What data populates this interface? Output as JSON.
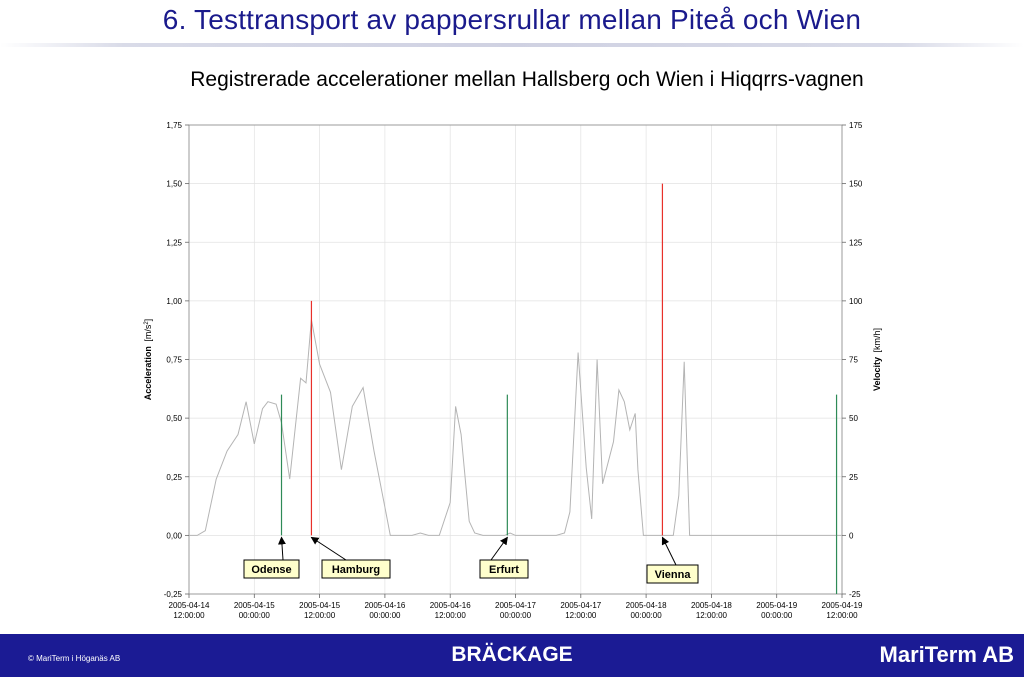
{
  "slide": {
    "title": "6. Testtransport av pappersrullar mellan Piteå och Wien",
    "subtitle": "Registrerade accelerationer mellan Hallsberg och Wien i Hiqqrrs-vagnen"
  },
  "footer": {
    "copyright": "© MariTerm i Höganäs AB",
    "center": "BRÄCKAGE",
    "brand": "MariTerm AB",
    "color": "#1b1b94"
  },
  "chart_data": {
    "type": "line",
    "ylabel_bold": "Acceleration",
    "ylabel_unit": "[m/s",
    "ylabel_sup": "2",
    "ylabel_end": "]",
    "y2label_bold": "Velocity",
    "y2label_unit": "[km/h]",
    "ylim": [
      -0.25,
      1.75
    ],
    "y2lim": [
      -25,
      175
    ],
    "yticks": [
      "1,75",
      "1,50",
      "1,25",
      "1,00",
      "0,75",
      "0,50",
      "0,25",
      "0,00",
      "-0,25"
    ],
    "y2ticks": [
      "175",
      "150",
      "125",
      "100",
      "75",
      "50",
      "25",
      "0",
      "-25"
    ],
    "xlim": [
      "2005-04-14 12:00",
      "2005-04-19 12:00"
    ],
    "xticks": [
      [
        "2005-04-14",
        "12:00:00"
      ],
      [
        "2005-04-15",
        "00:00:00"
      ],
      [
        "2005-04-15",
        "12:00:00"
      ],
      [
        "2005-04-16",
        "00:00:00"
      ],
      [
        "2005-04-16",
        "12:00:00"
      ],
      [
        "2005-04-17",
        "00:00:00"
      ],
      [
        "2005-04-17",
        "12:00:00"
      ],
      [
        "2005-04-18",
        "00:00:00"
      ],
      [
        "2005-04-18",
        "12:00:00"
      ],
      [
        "2005-04-19",
        "00:00:00"
      ],
      [
        "2005-04-19",
        "12:00:00"
      ]
    ],
    "grid": true,
    "colors": {
      "velocity": "#b4b4b4",
      "red_accel": "#e8302a",
      "green_accel": "#2e8b57",
      "label_bg": "#ffffcc"
    },
    "series": [
      {
        "role": "velocity",
        "x": [
          "2005-04-14 12:00",
          "2005-04-14 13:30",
          "2005-04-14 15:00",
          "2005-04-14 17:00",
          "2005-04-14 19:00",
          "2005-04-14 21:00",
          "2005-04-14 22:30",
          "2005-04-15 00:00",
          "2005-04-15 01:30",
          "2005-04-15 02:30",
          "2005-04-15 04:00",
          "2005-04-15 05:00",
          "2005-04-15 06:30",
          "2005-04-15 08:30",
          "2005-04-15 09:30",
          "2005-04-15 10:30",
          "2005-04-15 12:00",
          "2005-04-15 14:00",
          "2005-04-15 16:00",
          "2005-04-15 18:00",
          "2005-04-15 20:00",
          "2005-04-15 22:00",
          "2005-04-16 00:00",
          "2005-04-16 01:00",
          "2005-04-16 02:30",
          "2005-04-16 04:00",
          "2005-04-16 05:00",
          "2005-04-16 06:30",
          "2005-04-16 08:00",
          "2005-04-16 10:00",
          "2005-04-16 12:00",
          "2005-04-16 13:00",
          "2005-04-16 14:00",
          "2005-04-16 15:30",
          "2005-04-16 16:30",
          "2005-04-16 18:00",
          "2005-04-16 19:00",
          "2005-04-16 20:00",
          "2005-04-16 21:00",
          "2005-04-16 22:00",
          "2005-04-16 23:00",
          "2005-04-17 00:00",
          "2005-04-17 01:00",
          "2005-04-17 02:00",
          "2005-04-17 03:00",
          "2005-04-17 04:00",
          "2005-04-17 05:00",
          "2005-04-17 06:30",
          "2005-04-17 07:30",
          "2005-04-17 09:00",
          "2005-04-17 10:00",
          "2005-04-17 11:30",
          "2005-04-17 13:00",
          "2005-04-17 14:00",
          "2005-04-17 15:00",
          "2005-04-17 16:00",
          "2005-04-17 18:00",
          "2005-04-17 19:00",
          "2005-04-17 20:00",
          "2005-04-17 21:00",
          "2005-04-17 22:00",
          "2005-04-17 22:30",
          "2005-04-17 23:30",
          "2005-04-18 00:00",
          "2005-04-18 01:30",
          "2005-04-18 03:00",
          "2005-04-18 04:00",
          "2005-04-18 05:00",
          "2005-04-18 06:00",
          "2005-04-18 07:00",
          "2005-04-18 08:00",
          "2005-04-18 10:00",
          "2005-04-18 11:00",
          "2005-04-18 12:00",
          "2005-04-19 12:00"
        ],
        "values": [
          0,
          0,
          2,
          24,
          36,
          43,
          57,
          39,
          54,
          57,
          56,
          48,
          24,
          67,
          65,
          92,
          73,
          61,
          28,
          55,
          63,
          36,
          12,
          0,
          0,
          0,
          0,
          1,
          0,
          0,
          14,
          55,
          43,
          6,
          1,
          0,
          0,
          0,
          0,
          0,
          1,
          0,
          0,
          0,
          0,
          0,
          0,
          0,
          0,
          1,
          10,
          78,
          29,
          7,
          75,
          22,
          40,
          62,
          57,
          45,
          52,
          28,
          0,
          0,
          0,
          0,
          0,
          0,
          17,
          74,
          0,
          0,
          0,
          0,
          0
        ]
      },
      {
        "role": "red_accel",
        "x": [
          "2005-04-15 10:30",
          "2005-04-18 03:00"
        ],
        "values": [
          1.0,
          1.5
        ]
      },
      {
        "role": "green_accel",
        "x": [
          "2005-04-15 05:00",
          "2005-04-16 22:30",
          "2005-04-19 11:00"
        ],
        "values": [
          0.6,
          0.6,
          0.6
        ]
      }
    ],
    "annotations": [
      {
        "text": "Odense",
        "x": "2005-04-15 05:00"
      },
      {
        "text": "Hamburg",
        "x": "2005-04-15 10:30"
      },
      {
        "text": "Erfurt",
        "x": "2005-04-16 22:30"
      },
      {
        "text": "Vienna",
        "x": "2005-04-18 03:00"
      }
    ]
  }
}
